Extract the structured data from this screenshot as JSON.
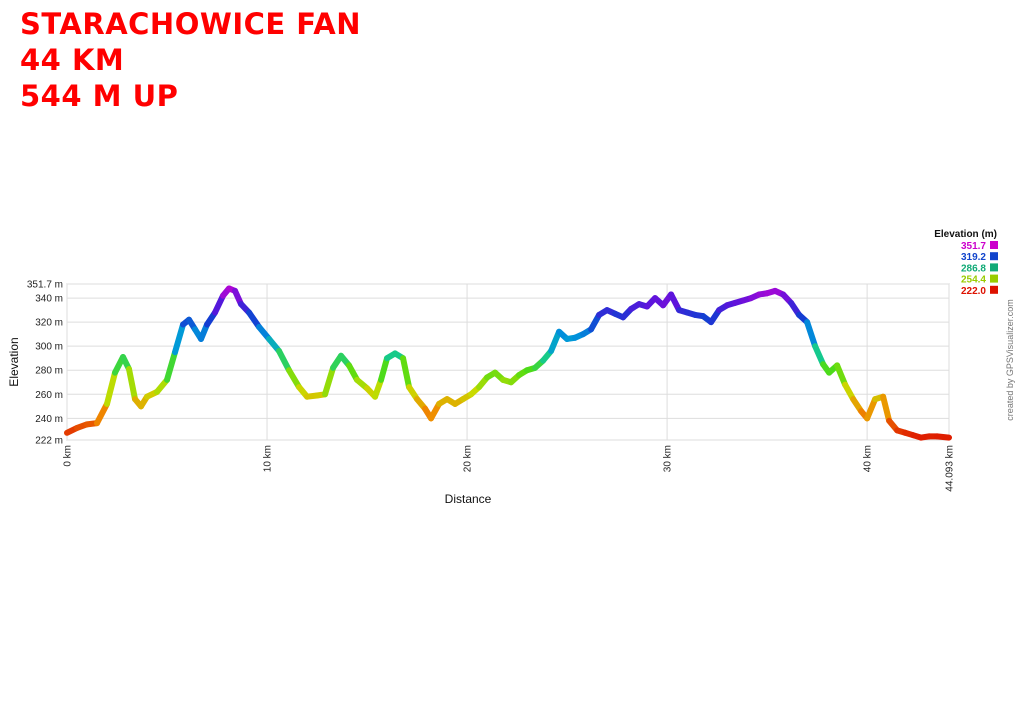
{
  "header": {
    "line1": "STARACHOWICE FAN",
    "line2": "44 KM",
    "line3": "544 M UP"
  },
  "credit": "created by GPSVisualizer.com",
  "chart_data": {
    "type": "line",
    "xlabel": "Distance",
    "ylabel": "Elevation",
    "xlim": [
      0,
      44.093
    ],
    "ylim": [
      222,
      351.7
    ],
    "x_ticks": [
      {
        "value": 0,
        "label": "0 km"
      },
      {
        "value": 10,
        "label": "10 km"
      },
      {
        "value": 20,
        "label": "20 km"
      },
      {
        "value": 30,
        "label": "30 km"
      },
      {
        "value": 40,
        "label": "40 km"
      },
      {
        "value": 44.093,
        "label": "44.093 km"
      }
    ],
    "y_ticks": [
      {
        "value": 222,
        "label": "222 m"
      },
      {
        "value": 240,
        "label": "240 m"
      },
      {
        "value": 260,
        "label": "260 m"
      },
      {
        "value": 280,
        "label": "280 m"
      },
      {
        "value": 300,
        "label": "300 m"
      },
      {
        "value": 320,
        "label": "320 m"
      },
      {
        "value": 340,
        "label": "340 m"
      },
      {
        "value": 351.7,
        "label": "351.7 m"
      }
    ],
    "legend": {
      "title": "Elevation (m)",
      "placement": "top-right",
      "entries": [
        {
          "label": "351.7",
          "color": "#cc00cc"
        },
        {
          "label": "319.2",
          "color": "#1144cc"
        },
        {
          "label": "286.8",
          "color": "#11aa77"
        },
        {
          "label": "254.4",
          "color": "#99cc00"
        },
        {
          "label": "222.0",
          "color": "#dd1100"
        }
      ]
    },
    "series": [
      {
        "x": [
          0,
          0.5,
          1.0,
          1.5,
          2.0,
          2.4,
          2.8,
          3.1,
          3.4,
          3.7,
          4.0,
          4.5,
          5.0,
          5.4,
          5.8,
          6.1,
          6.4,
          6.7,
          7.0,
          7.4,
          7.8,
          8.1,
          8.4,
          8.7,
          9.1,
          9.6,
          10.1,
          10.6,
          11.1,
          11.6,
          12.0,
          12.5,
          12.9,
          13.3,
          13.7,
          14.1,
          14.5,
          15.0,
          15.4,
          15.7,
          16.0,
          16.4,
          16.8,
          17.1,
          17.5,
          17.9,
          18.2,
          18.6,
          19.0,
          19.4,
          19.8,
          20.2,
          20.6,
          21.0,
          21.4,
          21.8,
          22.2,
          22.6,
          23.0,
          23.4,
          23.8,
          24.2,
          24.6,
          25.0,
          25.4,
          25.8,
          26.2,
          26.6,
          27.0,
          27.4,
          27.8,
          28.2,
          28.6,
          29.0,
          29.4,
          29.8,
          30.2,
          30.6,
          31.0,
          31.4,
          31.8,
          32.2,
          32.6,
          33.0,
          33.4,
          33.8,
          34.2,
          34.6,
          35.0,
          35.4,
          35.8,
          36.2,
          36.6,
          37.0,
          37.4,
          37.8,
          38.1,
          38.5,
          38.9,
          39.3,
          39.7,
          40.0,
          40.4,
          40.8,
          41.1,
          41.5,
          41.9,
          42.3,
          42.7,
          43.1,
          43.5,
          44.093
        ],
        "y": [
          228,
          232,
          235,
          236,
          252,
          278,
          291,
          281,
          256,
          250,
          258,
          262,
          272,
          295,
          318,
          322,
          314,
          306,
          318,
          328,
          342,
          348,
          346,
          335,
          328,
          316,
          306,
          296,
          280,
          266,
          258,
          259,
          260,
          282,
          292,
          284,
          272,
          265,
          258,
          272,
          290,
          294,
          290,
          266,
          256,
          248,
          240,
          252,
          256,
          252,
          256,
          260,
          266,
          274,
          278,
          272,
          270,
          276,
          280,
          282,
          288,
          296,
          312,
          306,
          307,
          310,
          314,
          326,
          330,
          327,
          324,
          331,
          335,
          333,
          340,
          334,
          343,
          330,
          328,
          326,
          325,
          320,
          330,
          334,
          336,
          338,
          340,
          343,
          344,
          346,
          343,
          336,
          326,
          320,
          300,
          285,
          278,
          284,
          268,
          256,
          246,
          240,
          256,
          258,
          238,
          230,
          228,
          226,
          224,
          225,
          225,
          224
        ]
      }
    ]
  }
}
